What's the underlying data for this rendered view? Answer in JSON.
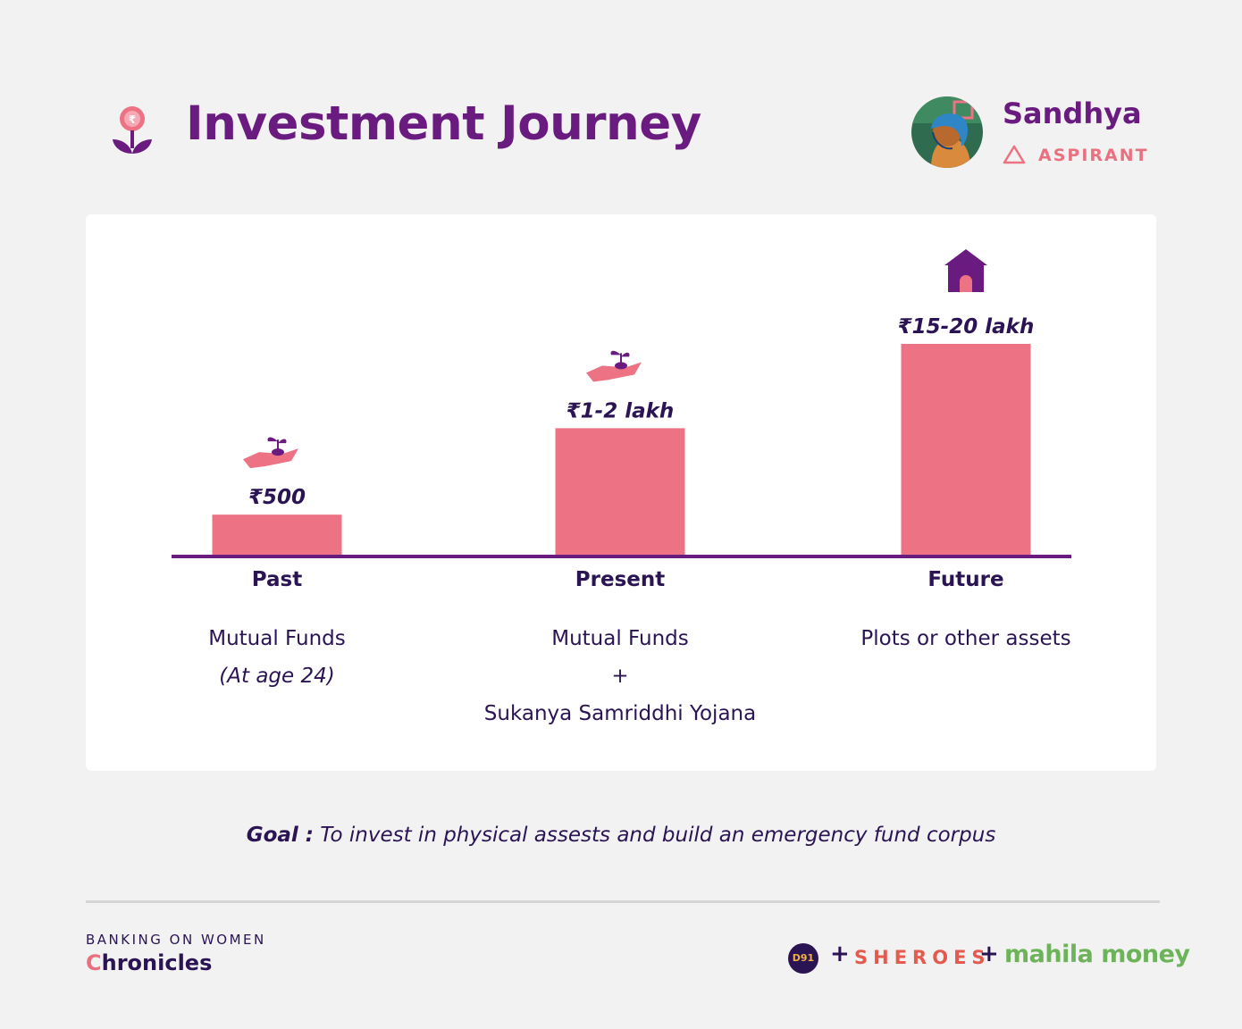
{
  "header": {
    "title": "Investment Journey",
    "title_icon": "flower-rupee-icon",
    "persona_name": "Sandhya",
    "persona_role": "ASPIRANT",
    "role_icon": "triangle-outline-icon"
  },
  "chart_data": {
    "type": "bar",
    "categories": [
      "Past",
      "Present",
      "Future"
    ],
    "value_labels": [
      "₹500",
      "₹1-2 lakh",
      "₹15-20 lakh"
    ],
    "descriptions": [
      [
        "Mutual Funds",
        "(At age 24)"
      ],
      [
        "Mutual Funds",
        "+",
        "Sukanya Samriddhi Yojana"
      ],
      [
        "Plots or other assets"
      ]
    ],
    "bar_levels": [
      0.19,
      0.6,
      1.0
    ],
    "icons": [
      "hand-sapling-icon",
      "hand-sapling-icon",
      "house-icon"
    ],
    "colors": {
      "bar": "#ec7284",
      "axis": "#6a1b7f"
    }
  },
  "goal": {
    "label": "Goal :",
    "text": " To invest in physical assests and build an emergency fund corpus"
  },
  "footer": {
    "series_top": "BANKING ON WOMEN",
    "series_first_letter": "C",
    "series_rest": "hronicles",
    "d91": "D91",
    "plus": "+",
    "sheroes": "SHEROES",
    "mahila": "mahila money"
  }
}
